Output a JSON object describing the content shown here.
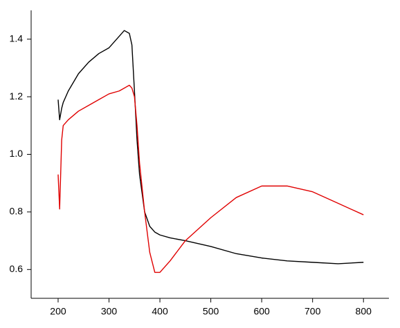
{
  "chart_data": {
    "type": "line",
    "x": [
      200,
      203,
      207,
      210,
      220,
      240,
      260,
      280,
      300,
      320,
      330,
      340,
      345,
      350,
      355,
      360,
      370,
      380,
      390,
      400,
      420,
      450,
      500,
      550,
      600,
      650,
      700,
      750,
      800
    ],
    "series": [
      {
        "color": "#000000",
        "values": [
          1.19,
          1.12,
          1.16,
          1.18,
          1.22,
          1.28,
          1.32,
          1.35,
          1.37,
          1.41,
          1.43,
          1.42,
          1.38,
          1.22,
          1.05,
          0.93,
          0.8,
          0.75,
          0.73,
          0.72,
          0.71,
          0.7,
          0.68,
          0.655,
          0.64,
          0.63,
          0.625,
          0.62,
          0.625
        ]
      },
      {
        "color": "#e00000",
        "values": [
          0.93,
          0.81,
          1.05,
          1.1,
          1.12,
          1.15,
          1.17,
          1.19,
          1.21,
          1.22,
          1.23,
          1.24,
          1.23,
          1.2,
          1.1,
          0.97,
          0.8,
          0.66,
          0.59,
          0.59,
          0.63,
          0.7,
          0.78,
          0.85,
          0.89,
          0.89,
          0.87,
          0.83,
          0.79
        ]
      }
    ],
    "xlim": [
      147,
      850
    ],
    "ylim": [
      0.5,
      1.5
    ],
    "xticks": [
      200,
      300,
      400,
      500,
      600,
      700,
      800
    ],
    "yticks": [
      0.6,
      0.8,
      {
        "value": 1,
        "label": "1.0"
      },
      1.2,
      1.4
    ]
  }
}
